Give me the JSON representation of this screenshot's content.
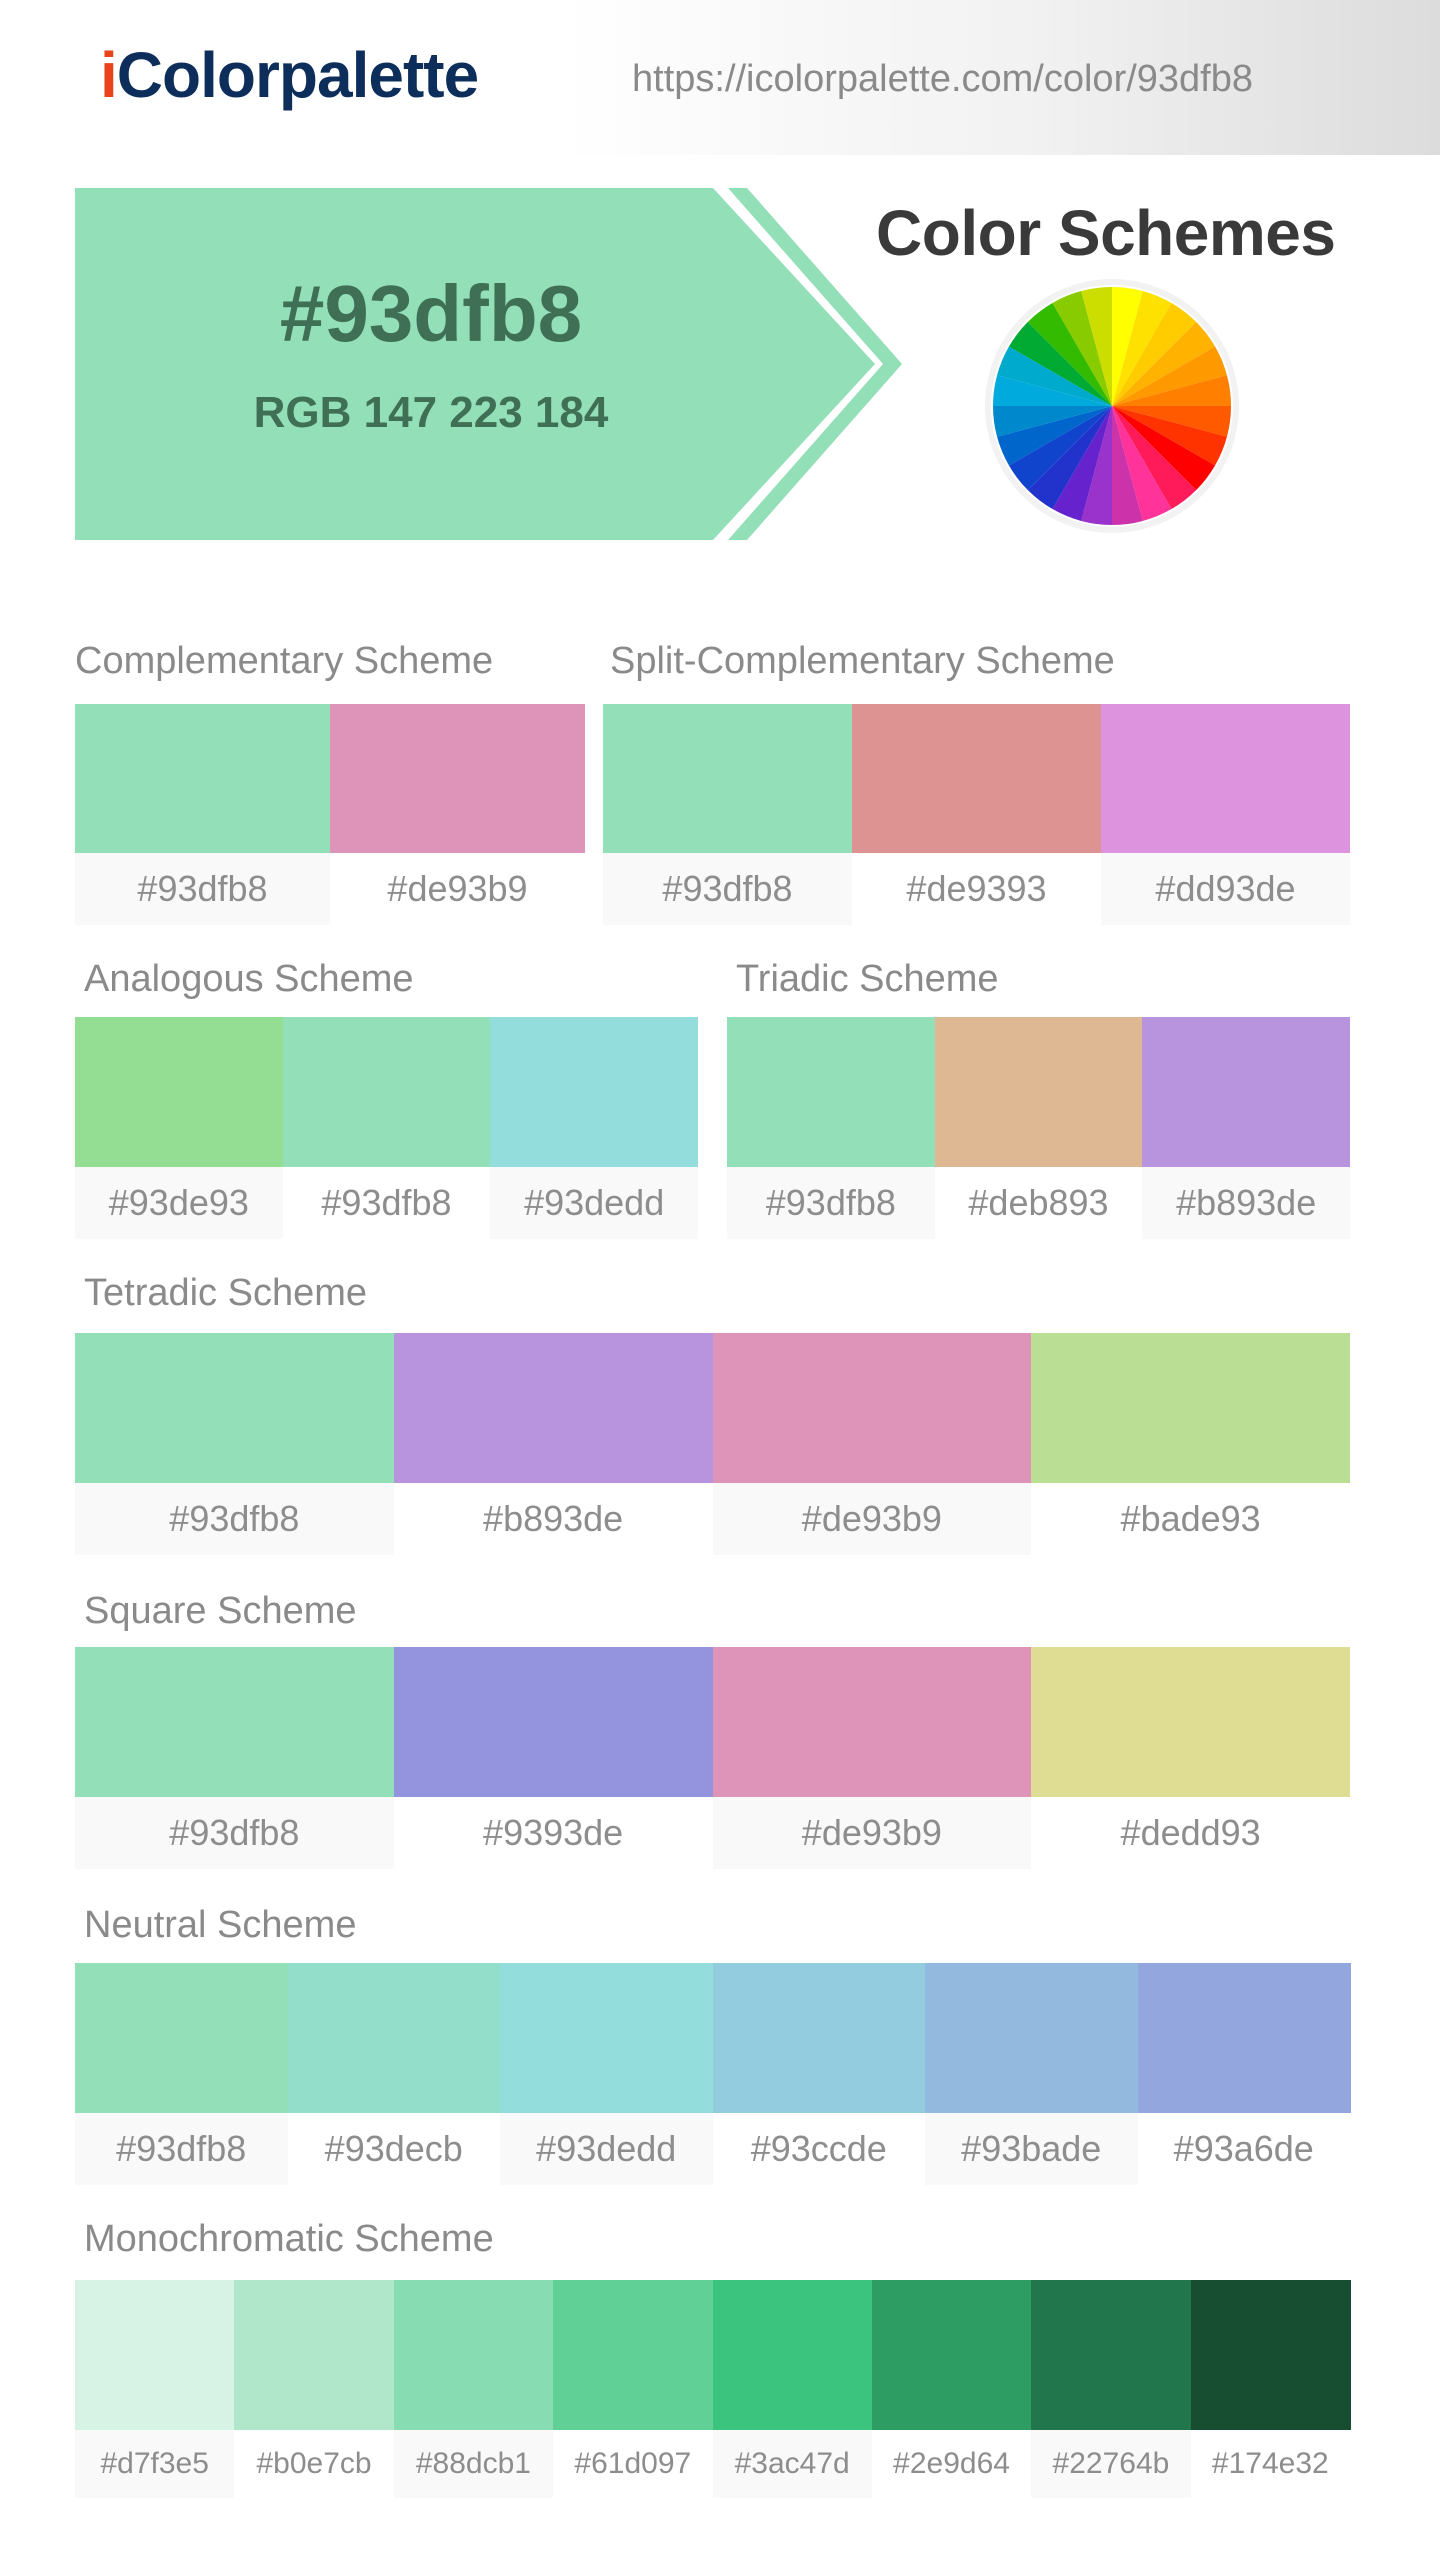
{
  "header": {
    "logo_i": "i",
    "logo_rest": "Colorpalette",
    "url": "https://icolorpalette.com/color/93dfb8"
  },
  "hero": {
    "hex": "#93dfb8",
    "rgb": "RGB 147 223 184",
    "color": "#93dfb8"
  },
  "color_schemes_title": "Color Schemes",
  "color_wheel_icon": "color-wheel-icon",
  "schemes": {
    "complementary": {
      "title": "Complementary Scheme",
      "colors": [
        "#93dfb8",
        "#de93b9"
      ]
    },
    "split_complementary": {
      "title": "Split-Complementary Scheme",
      "colors": [
        "#93dfb8",
        "#de9393",
        "#dd93de"
      ]
    },
    "analogous": {
      "title": "Analogous Scheme",
      "colors": [
        "#93de93",
        "#93dfb8",
        "#93dedd"
      ]
    },
    "triadic": {
      "title": "Triadic Scheme",
      "colors": [
        "#93dfb8",
        "#deb893",
        "#b893de"
      ]
    },
    "tetradic": {
      "title": "Tetradic Scheme",
      "colors": [
        "#93dfb8",
        "#b893de",
        "#de93b9",
        "#bade93"
      ]
    },
    "square": {
      "title": "Square Scheme",
      "colors": [
        "#93dfb8",
        "#9393de",
        "#de93b9",
        "#dedd93"
      ]
    },
    "neutral": {
      "title": "Neutral Scheme",
      "colors": [
        "#93dfb8",
        "#93decb",
        "#93dedd",
        "#93ccde",
        "#93bade",
        "#93a6de"
      ]
    },
    "monochromatic": {
      "title": "Monochromatic Scheme",
      "colors": [
        "#d7f3e5",
        "#b0e7cb",
        "#88dcb1",
        "#61d097",
        "#3ac47d",
        "#2e9d64",
        "#22764b",
        "#174e32"
      ]
    }
  }
}
